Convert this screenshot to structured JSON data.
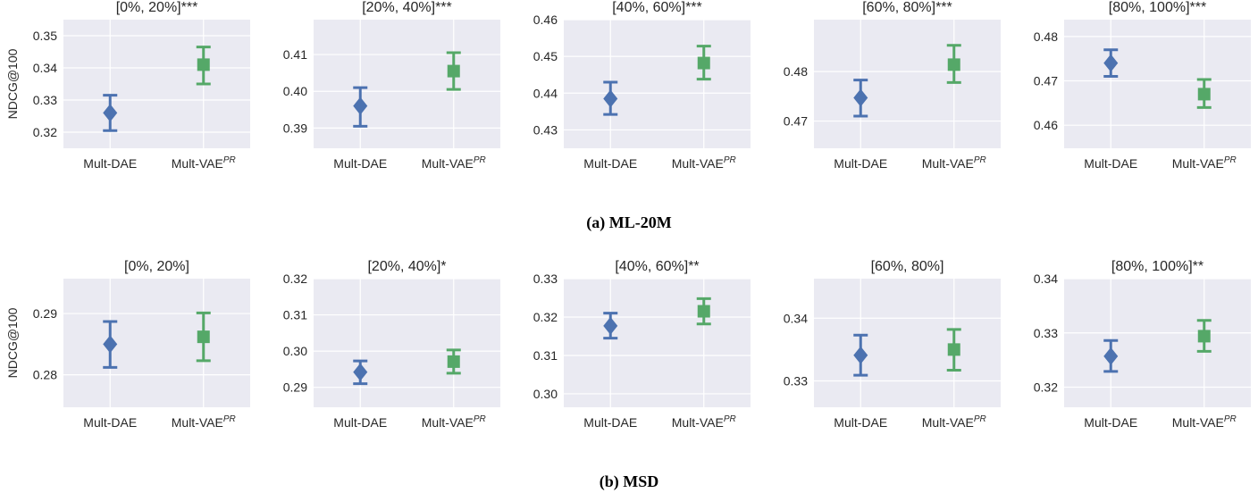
{
  "chart_data": [
    {
      "type": "scatter",
      "title": "[0%, 20%]***",
      "ylabel": "NDCG@100",
      "categories": [
        "Mult-DAE",
        "Mult-VAE"
      ],
      "ylim": [
        0.315,
        0.355
      ],
      "yticks": [
        0.32,
        0.33,
        0.34,
        0.35
      ],
      "tick_decimals": 2,
      "points": [
        {
          "center": 0.326,
          "low": 0.3205,
          "high": 0.3315
        },
        {
          "center": 0.341,
          "low": 0.335,
          "high": 0.3465
        }
      ]
    },
    {
      "type": "scatter",
      "title": "[20%, 40%]***",
      "ylabel": "",
      "categories": [
        "Mult-DAE",
        "Mult-VAE"
      ],
      "ylim": [
        0.3845,
        0.4195
      ],
      "yticks": [
        0.39,
        0.4,
        0.41
      ],
      "tick_decimals": 2,
      "points": [
        {
          "center": 0.396,
          "low": 0.3905,
          "high": 0.401
        },
        {
          "center": 0.4055,
          "low": 0.4005,
          "high": 0.4105
        }
      ]
    },
    {
      "type": "scatter",
      "title": "[40%, 60%]***",
      "ylabel": "",
      "categories": [
        "Mult-DAE",
        "Mult-VAE"
      ],
      "ylim": [
        0.425,
        0.46
      ],
      "yticks": [
        0.43,
        0.44,
        0.45,
        0.46
      ],
      "tick_decimals": 2,
      "points": [
        {
          "center": 0.4385,
          "low": 0.4342,
          "high": 0.443
        },
        {
          "center": 0.4482,
          "low": 0.4438,
          "high": 0.4528
        }
      ]
    },
    {
      "type": "scatter",
      "title": "[60%, 80%]***",
      "ylabel": "",
      "categories": [
        "Mult-DAE",
        "Mult-VAE"
      ],
      "ylim": [
        0.4645,
        0.4905
      ],
      "yticks": [
        0.47,
        0.48
      ],
      "tick_decimals": 2,
      "points": [
        {
          "center": 0.4747,
          "low": 0.471,
          "high": 0.4783
        },
        {
          "center": 0.4814,
          "low": 0.4778,
          "high": 0.4853
        }
      ]
    },
    {
      "type": "scatter",
      "title": "[80%, 100%]***",
      "ylabel": "",
      "categories": [
        "Mult-DAE",
        "Mult-VAE"
      ],
      "ylim": [
        0.4548,
        0.4838
      ],
      "yticks": [
        0.46,
        0.47,
        0.48
      ],
      "tick_decimals": 2,
      "points": [
        {
          "center": 0.474,
          "low": 0.471,
          "high": 0.477
        },
        {
          "center": 0.467,
          "low": 0.464,
          "high": 0.4703
        }
      ]
    },
    {
      "type": "scatter",
      "title": "[0%, 20%]",
      "ylabel": "NDCG@100",
      "categories": [
        "Mult-DAE",
        "Mult-VAE"
      ],
      "ylim": [
        0.2747,
        0.2957
      ],
      "yticks": [
        0.28,
        0.29
      ],
      "tick_decimals": 2,
      "points": [
        {
          "center": 0.285,
          "low": 0.2812,
          "high": 0.2887
        },
        {
          "center": 0.2862,
          "low": 0.2823,
          "high": 0.2901
        }
      ]
    },
    {
      "type": "scatter",
      "title": "[20%, 40%]*",
      "ylabel": "",
      "categories": [
        "Mult-DAE",
        "Mult-VAE"
      ],
      "ylim": [
        0.2845,
        0.32
      ],
      "yticks": [
        0.29,
        0.3,
        0.31,
        0.32
      ],
      "tick_decimals": 2,
      "points": [
        {
          "center": 0.2942,
          "low": 0.291,
          "high": 0.2973
        },
        {
          "center": 0.2971,
          "low": 0.2939,
          "high": 0.3003
        }
      ]
    },
    {
      "type": "scatter",
      "title": "[40%, 60%]**",
      "ylabel": "",
      "categories": [
        "Mult-DAE",
        "Mult-VAE"
      ],
      "ylim": [
        0.2965,
        0.33
      ],
      "yticks": [
        0.3,
        0.31,
        0.32,
        0.33
      ],
      "tick_decimals": 2,
      "points": [
        {
          "center": 0.3177,
          "low": 0.3145,
          "high": 0.321
        },
        {
          "center": 0.3215,
          "low": 0.3182,
          "high": 0.3248
        }
      ]
    },
    {
      "type": "scatter",
      "title": "[60%, 80%]",
      "ylabel": "",
      "categories": [
        "Mult-DAE",
        "Mult-VAE"
      ],
      "ylim": [
        0.3258,
        0.3463
      ],
      "yticks": [
        0.33,
        0.34
      ],
      "tick_decimals": 2,
      "points": [
        {
          "center": 0.3341,
          "low": 0.3309,
          "high": 0.3373
        },
        {
          "center": 0.335,
          "low": 0.3317,
          "high": 0.3382
        }
      ]
    },
    {
      "type": "scatter",
      "title": "[80%, 100%]**",
      "ylabel": "",
      "categories": [
        "Mult-DAE",
        "Mult-VAE"
      ],
      "ylim": [
        0.3163,
        0.34
      ],
      "yticks": [
        0.32,
        0.33,
        0.34
      ],
      "tick_decimals": 2,
      "points": [
        {
          "center": 0.3257,
          "low": 0.3229,
          "high": 0.3286
        },
        {
          "center": 0.3294,
          "low": 0.3266,
          "high": 0.3323
        }
      ]
    }
  ],
  "category_labels": [
    {
      "base": "Mult-DAE",
      "sup": ""
    },
    {
      "base": "Mult-VAE",
      "sup": "PR"
    }
  ],
  "colors": {
    "dae": "#4c72b0",
    "vae": "#55a868",
    "plot_bg": "#eaeaf2",
    "grid": "#ffffff"
  },
  "markers": {
    "dae": "diamond",
    "vae": "square"
  },
  "captions": [
    "(a) ML-20M",
    "(b) MSD"
  ]
}
